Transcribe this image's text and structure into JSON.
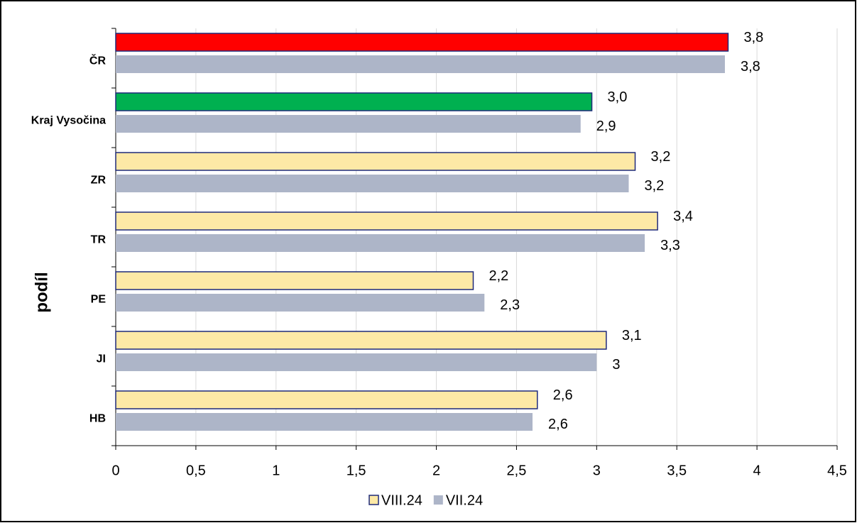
{
  "chart_data": {
    "type": "hbar",
    "y_label": "podíl",
    "categories": [
      "ČR",
      "Kraj Vysočina",
      "ZR",
      "TR",
      "PE",
      "JI",
      "HB"
    ],
    "series": [
      {
        "name": "VIII.24",
        "color": "#fde9a6",
        "border": "#1f2a7a",
        "colors": [
          "#ff0000",
          "#00b050",
          "#fde9a6",
          "#fde9a6",
          "#fde9a6",
          "#fde9a6",
          "#fde9a6"
        ],
        "values": [
          3.82,
          2.97,
          3.24,
          3.38,
          2.23,
          3.06,
          2.63
        ],
        "value_labels": [
          "3,8",
          "3,0",
          "3,2",
          "3,4",
          "2,2",
          "3,1",
          "2,6"
        ]
      },
      {
        "name": "VII.24",
        "color": "#adb5c8",
        "values": [
          3.8,
          2.9,
          3.2,
          3.3,
          2.3,
          3.0,
          2.6
        ],
        "value_labels": [
          "3,8",
          "2,9",
          "3,2",
          "3,3",
          "2,3",
          "3",
          "2,6"
        ]
      }
    ],
    "xlim": [
      0,
      4.5
    ],
    "xticks": [
      0,
      {
        "value": 0.5,
        "label": "0,5"
      },
      1,
      {
        "value": 1.5,
        "label": "1,5"
      },
      2,
      {
        "value": 2.5,
        "label": "2,5"
      },
      3,
      {
        "value": 3.5,
        "label": "3,5"
      },
      4,
      {
        "value": 4.5,
        "label": "4,5"
      }
    ],
    "grid": true,
    "legend": "bottom"
  }
}
